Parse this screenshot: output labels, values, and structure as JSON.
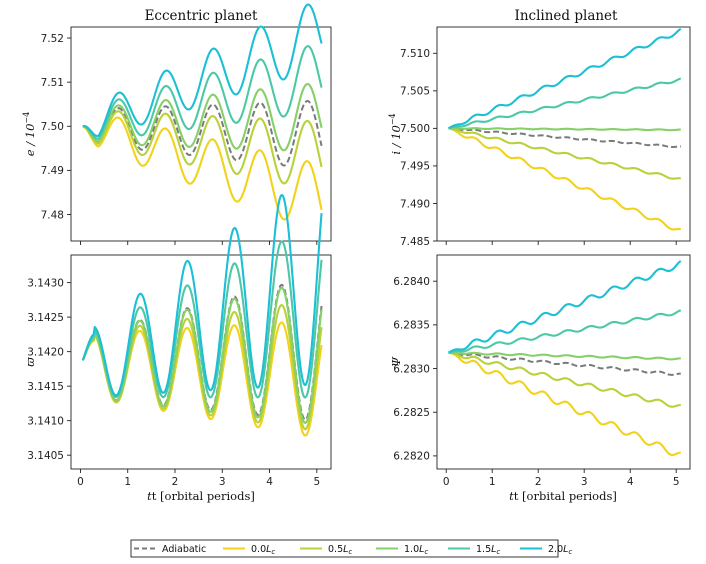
{
  "colors": {
    "Adiabatic": "#7a7a7a",
    "0.0": "#f2d21b",
    "0.5": "#b9d13a",
    "1.0": "#86d067",
    "1.5": "#4cc8a6",
    "2.0": "#1bbfd6"
  },
  "legend": {
    "placement": "bottom-center",
    "items": [
      {
        "label": "Adiabatic",
        "key": "Adiabatic",
        "dashed": true
      },
      {
        "label": "0.0",
        "key": "0.0",
        "suffix": "L",
        "sub": "c"
      },
      {
        "label": "0.5",
        "key": "0.5",
        "suffix": "L",
        "sub": "c"
      },
      {
        "label": "1.0",
        "key": "1.0",
        "suffix": "L",
        "sub": "c"
      },
      {
        "label": "1.5",
        "key": "1.5",
        "suffix": "L",
        "sub": "c"
      },
      {
        "label": "2.0",
        "key": "2.0",
        "suffix": "L",
        "sub": "c"
      }
    ]
  },
  "chart_data": [
    {
      "type": "line",
      "title": "Eccentric planet",
      "ylabel": "e / 10",
      "ylabel_exp": "−4",
      "xlabel": "",
      "xlim": [
        -0.2,
        5.3
      ],
      "ylim": [
        7.474,
        7.5225
      ],
      "yticks": [
        "7.48",
        "7.49",
        "7.50",
        "7.51",
        "7.52"
      ],
      "ytick_values": [
        7.48,
        7.49,
        7.5,
        7.51,
        7.52
      ],
      "xticks_labels_shown": false,
      "model": {
        "kind": "eccentric_e",
        "base": 7.5,
        "amp": 0.0042,
        "period": 1.0,
        "growth": [
          -0.0035,
          -0.0018,
          0.0,
          0.0012,
          0.0034,
          0.0056
        ],
        "amp_growth": [
          0.0003,
          0.0003,
          0.00028,
          0.0003,
          0.0003,
          0.0003
        ]
      },
      "series": [
        {
          "name": "Adiabatic",
          "key": "Adiabatic",
          "dashed": true,
          "start": [
            0.05,
            7.5
          ],
          "end": [
            5.1,
            7.498
          ]
        },
        {
          "name": "0.0",
          "key": "0.0",
          "start": [
            0.05,
            7.5
          ],
          "end": [
            5.1,
            7.4835
          ]
        },
        {
          "name": "0.5",
          "key": "0.5",
          "start": [
            0.05,
            7.5
          ],
          "end": [
            5.1,
            7.4932
          ]
        },
        {
          "name": "1.0",
          "key": "1.0",
          "start": [
            0.05,
            7.5
          ],
          "end": [
            5.1,
            7.5021
          ]
        },
        {
          "name": "1.5",
          "key": "1.5",
          "start": [
            0.05,
            7.5
          ],
          "end": [
            5.1,
            7.5112
          ]
        },
        {
          "name": "2.0",
          "key": "2.0",
          "start": [
            0.05,
            7.5
          ],
          "end": [
            5.1,
            7.5212
          ]
        }
      ]
    },
    {
      "type": "line",
      "title": "Inclined planet",
      "ylabel": "i / 10",
      "ylabel_exp": "−4",
      "xlabel": "",
      "xlim": [
        -0.2,
        5.3
      ],
      "ylim": [
        7.485,
        7.5135
      ],
      "yticks": [
        "7.485",
        "7.490",
        "7.495",
        "7.500",
        "7.505",
        "7.510"
      ],
      "ytick_values": [
        7.485,
        7.49,
        7.495,
        7.5,
        7.505,
        7.51
      ],
      "xticks_labels_shown": false,
      "model": {
        "kind": "inclined_i",
        "base": 7.5,
        "wiggle": 0.00045,
        "period": 0.5
      },
      "series": [
        {
          "name": "Adiabatic",
          "key": "Adiabatic",
          "dashed": true,
          "start": [
            0.05,
            7.5
          ],
          "end": [
            5.1,
            7.4975
          ]
        },
        {
          "name": "0.0",
          "key": "0.0",
          "start": [
            0.05,
            7.5
          ],
          "end": [
            5.1,
            7.4863
          ]
        },
        {
          "name": "0.5",
          "key": "0.5",
          "start": [
            0.05,
            7.5
          ],
          "end": [
            5.1,
            7.4932
          ]
        },
        {
          "name": "1.0",
          "key": "1.0",
          "start": [
            0.05,
            7.5
          ],
          "end": [
            5.1,
            7.4998
          ]
        },
        {
          "name": "1.5",
          "key": "1.5",
          "start": [
            0.05,
            7.5
          ],
          "end": [
            5.1,
            7.5065
          ]
        },
        {
          "name": "2.0",
          "key": "2.0",
          "start": [
            0.05,
            7.5
          ],
          "end": [
            5.1,
            7.513
          ]
        }
      ]
    },
    {
      "type": "line",
      "title": "",
      "ylabel": "ϖ",
      "ylabel_exp": "",
      "xlabel": "t [orbital periods]",
      "xlim": [
        -0.2,
        5.3
      ],
      "ylim": [
        3.1403,
        3.1434
      ],
      "yticks": [
        "3.1405",
        "3.1410",
        "3.1415",
        "3.1420",
        "3.1425",
        "3.1430"
      ],
      "ytick_values": [
        3.1405,
        3.141,
        3.1415,
        3.142,
        3.1425,
        3.143
      ],
      "xticks": [
        "0",
        "1",
        "2",
        "3",
        "4",
        "5"
      ],
      "xtick_values": [
        0,
        1,
        2,
        3,
        4,
        5
      ],
      "model": {
        "kind": "eccentric_varpi",
        "base": 3.1418,
        "amp": 0.00045,
        "period": 1.0,
        "amp_growth": [
          0.00012,
          8e-05,
          0.0001,
          0.00012,
          0.00016,
          0.00022
        ],
        "drift": [
          1e-05,
          -2e-05,
          0.0,
          1e-05,
          3e-05,
          6e-05
        ]
      },
      "series": [
        {
          "name": "Adiabatic",
          "key": "Adiabatic",
          "dashed": true,
          "start": [
            0.05,
            3.1418
          ],
          "end": [
            5.1,
            3.14205
          ]
        },
        {
          "name": "0.0",
          "key": "0.0",
          "start": [
            0.05,
            3.1418
          ],
          "end": [
            5.1,
            3.1416
          ]
        },
        {
          "name": "0.5",
          "key": "0.5",
          "start": [
            0.05,
            3.1418
          ],
          "end": [
            5.1,
            3.1418
          ]
        },
        {
          "name": "1.0",
          "key": "1.0",
          "start": [
            0.05,
            3.1418
          ],
          "end": [
            5.1,
            3.142
          ]
        },
        {
          "name": "1.5",
          "key": "1.5",
          "start": [
            0.05,
            3.1418
          ],
          "end": [
            5.1,
            3.1426
          ]
        },
        {
          "name": "2.0",
          "key": "2.0",
          "start": [
            0.05,
            3.1418
          ],
          "end": [
            5.1,
            3.1431
          ]
        }
      ]
    },
    {
      "type": "line",
      "title": "",
      "ylabel": "Ψ",
      "ylabel_exp": "",
      "xlabel": "t [orbital periods]",
      "xlim": [
        -0.2,
        5.3
      ],
      "ylim": [
        6.28185,
        6.2843
      ],
      "yticks": [
        "6.2820",
        "6.2825",
        "6.2830",
        "6.2835",
        "6.2840"
      ],
      "ytick_values": [
        6.282,
        6.2825,
        6.283,
        6.2835,
        6.284
      ],
      "xticks": [
        "0",
        "1",
        "2",
        "3",
        "4",
        "5"
      ],
      "xtick_values": [
        0,
        1,
        2,
        3,
        4,
        5
      ],
      "model": {
        "kind": "inclined_psi",
        "base": 6.28318,
        "wiggle": 6e-05,
        "period": 0.5
      },
      "series": [
        {
          "name": "Adiabatic",
          "key": "Adiabatic",
          "dashed": true,
          "start": [
            0.05,
            6.28318
          ],
          "end": [
            5.1,
            6.28293
          ]
        },
        {
          "name": "0.0",
          "key": "0.0",
          "start": [
            0.05,
            6.28318
          ],
          "end": [
            5.1,
            6.282
          ]
        },
        {
          "name": "0.5",
          "key": "0.5",
          "start": [
            0.05,
            6.28318
          ],
          "end": [
            5.1,
            6.28256
          ]
        },
        {
          "name": "1.0",
          "key": "1.0",
          "start": [
            0.05,
            6.28318
          ],
          "end": [
            5.1,
            6.28311
          ]
        },
        {
          "name": "1.5",
          "key": "1.5",
          "start": [
            0.05,
            6.28318
          ],
          "end": [
            5.1,
            6.28365
          ]
        },
        {
          "name": "2.0",
          "key": "2.0",
          "start": [
            0.05,
            6.28318
          ],
          "end": [
            5.1,
            6.2842
          ]
        }
      ]
    }
  ]
}
